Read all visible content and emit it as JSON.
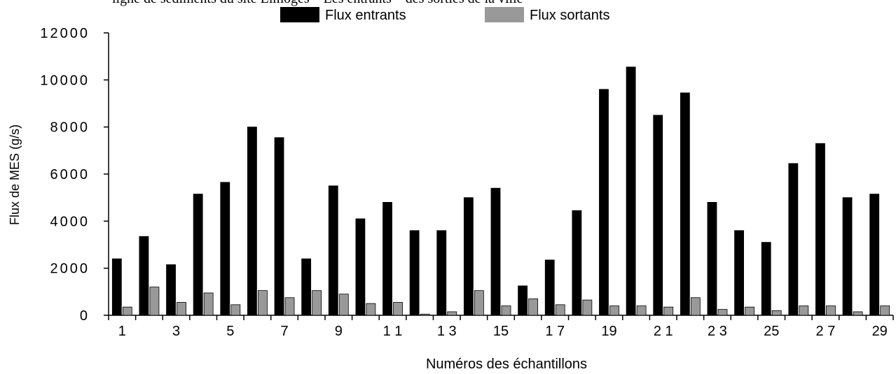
{
  "caption_fragment": "ligne de sédiments du site Limoges – Les entrants – des sorties de la ville",
  "chart_data": {
    "type": "bar",
    "title": "",
    "xlabel": "Numéros des échantillons",
    "ylabel": "Flux de MES (g/s)",
    "ylim": [
      0,
      12000
    ],
    "yticks": [
      0,
      2000,
      4000,
      6000,
      8000,
      10000,
      12000
    ],
    "ytick_labels": [
      "0",
      "2000",
      "4000",
      "6000",
      "8000",
      "10000",
      "12000"
    ],
    "categories": [
      "1",
      "2",
      "3",
      "4",
      "5",
      "6",
      "7",
      "8",
      "9",
      "10",
      "11",
      "12",
      "13",
      "14",
      "15",
      "16",
      "17",
      "18",
      "19",
      "20",
      "21",
      "22",
      "23",
      "24",
      "25",
      "26",
      "27",
      "28",
      "29"
    ],
    "xtick_labels": [
      "1",
      "",
      "3",
      "",
      "5",
      "",
      "7",
      "",
      "9",
      "",
      "1 1",
      "",
      "1 3",
      "",
      "15",
      "",
      "1 7",
      "",
      "19",
      "",
      "2 1",
      "",
      "2 3",
      "",
      "25",
      "",
      "2 7",
      "",
      "29"
    ],
    "legend_position": "top",
    "series": [
      {
        "name": "Flux entrants",
        "color": "#000000",
        "values": [
          2400,
          3350,
          2150,
          5150,
          5650,
          8000,
          7550,
          2400,
          5500,
          4100,
          4800,
          3600,
          3600,
          5000,
          5400,
          1250,
          2350,
          4450,
          9600,
          10550,
          8500,
          9450,
          4800,
          3600,
          3100,
          6450,
          7300,
          5000,
          5150
        ]
      },
      {
        "name": "Flux sortants",
        "color": "#999999",
        "values": [
          350,
          1200,
          550,
          950,
          450,
          1050,
          750,
          1050,
          900,
          500,
          550,
          50,
          150,
          1050,
          400,
          700,
          450,
          650,
          400,
          400,
          350,
          750,
          250,
          350,
          200,
          400,
          400,
          150,
          400
        ]
      }
    ]
  }
}
